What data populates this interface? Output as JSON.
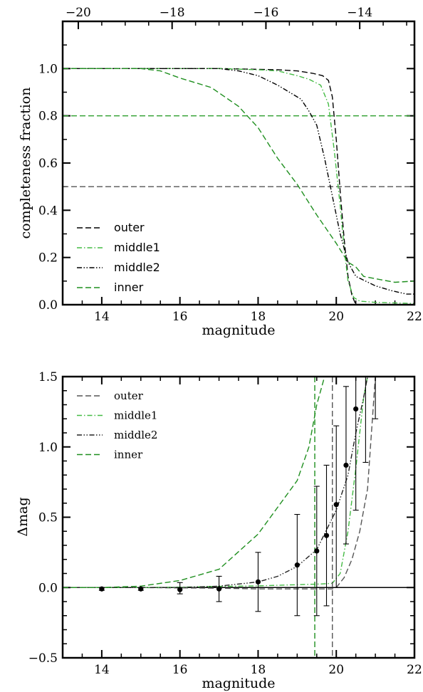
{
  "chart_data": [
    {
      "type": "line",
      "xlabel": "magnitude",
      "ylabel": "completeness fraction",
      "xlim": [
        13,
        22
      ],
      "ylim": [
        0,
        1.2
      ],
      "x_ticks": [
        "14",
        "16",
        "18",
        "20",
        "22"
      ],
      "y_ticks": [
        "0.0",
        "0.2",
        "0.4",
        "0.6",
        "0.8",
        "1.0"
      ],
      "top_axis_ticks": [
        "−20",
        "−18",
        "−16",
        "−14"
      ],
      "top_axis_tick_magnitudes": [
        13.4,
        15.8,
        18.2,
        20.6
      ],
      "reference_lines": [
        {
          "y": 0.8,
          "color": "#2e9e2e"
        },
        {
          "y": 0.5,
          "color": "#555555"
        }
      ],
      "legend_position": "lower-left",
      "series": [
        {
          "name": "outer",
          "color": "#000000",
          "dash": "dashed",
          "x": [
            13.0,
            15,
            17,
            18.5,
            19.0,
            19.4,
            19.65,
            19.8,
            19.9,
            20.0,
            20.1,
            20.2,
            20.3,
            20.4,
            20.5,
            22.0
          ],
          "y": [
            1.0,
            1.0,
            1.0,
            0.995,
            0.99,
            0.98,
            0.97,
            0.95,
            0.88,
            0.7,
            0.48,
            0.28,
            0.12,
            0.04,
            0.0,
            0.0
          ]
        },
        {
          "name": "middle1",
          "color": "#44bb44",
          "dash": "dashdot",
          "x": [
            13.0,
            15,
            17,
            18.0,
            18.5,
            19.0,
            19.3,
            19.6,
            19.8,
            19.95,
            20.1,
            20.2,
            20.3,
            20.45,
            20.6,
            21.0,
            22.0
          ],
          "y": [
            1.0,
            1.0,
            1.0,
            0.995,
            0.99,
            0.97,
            0.955,
            0.93,
            0.85,
            0.65,
            0.42,
            0.24,
            0.1,
            0.03,
            0.015,
            0.01,
            0.005
          ]
        },
        {
          "name": "middle2",
          "color": "#000000",
          "dash": "dashdotdot",
          "x": [
            13.0,
            16,
            17,
            17.5,
            18.0,
            18.5,
            18.8,
            19.1,
            19.3,
            19.5,
            19.7,
            19.9,
            20.1,
            20.3,
            20.5,
            21.0,
            21.4,
            21.8,
            22.0
          ],
          "y": [
            1.0,
            1.0,
            1.0,
            0.99,
            0.97,
            0.93,
            0.9,
            0.87,
            0.82,
            0.76,
            0.62,
            0.46,
            0.3,
            0.18,
            0.12,
            0.08,
            0.06,
            0.045,
            0.045
          ]
        },
        {
          "name": "inner",
          "color": "#1f8f1f",
          "dash": "dashed",
          "x": [
            13.0,
            15.0,
            15.5,
            16.0,
            16.8,
            17.5,
            18.0,
            18.5,
            19.0,
            19.5,
            20.0,
            20.3,
            20.5,
            20.7,
            21.0,
            21.5,
            22.0
          ],
          "y": [
            1.0,
            1.0,
            0.99,
            0.96,
            0.92,
            0.84,
            0.75,
            0.62,
            0.51,
            0.38,
            0.26,
            0.18,
            0.16,
            0.12,
            0.11,
            0.095,
            0.1
          ]
        }
      ]
    },
    {
      "type": "line",
      "xlabel": "magnitude",
      "ylabel": "Δmag",
      "xlim": [
        13,
        22
      ],
      "ylim": [
        -0.5,
        1.5
      ],
      "x_ticks": [
        "14",
        "16",
        "18",
        "20",
        "22"
      ],
      "y_ticks": [
        "−0.5",
        "0.0",
        "0.5",
        "1.0",
        "1.5"
      ],
      "legend_position": "top-left",
      "series": [
        {
          "name": "outer",
          "color": "#555555",
          "dash": "dashed",
          "x": [
            13.0,
            15,
            17,
            18,
            19,
            19.5,
            19.9,
            20.0,
            20.2,
            20.4,
            20.6,
            20.8,
            20.9,
            21.0
          ],
          "y": [
            0.0,
            0.0,
            -0.005,
            -0.01,
            -0.01,
            -0.01,
            -0.01,
            0.0,
            0.07,
            0.2,
            0.4,
            0.7,
            1.1,
            1.5
          ]
        },
        {
          "name": "middle1",
          "color": "#44bb44",
          "dash": "dashdot",
          "x": [
            13.0,
            15,
            16,
            17,
            18,
            19,
            19.6,
            19.9,
            20.1,
            20.3,
            20.5,
            20.6,
            20.7,
            20.8
          ],
          "y": [
            0.0,
            0.0,
            0.003,
            0.008,
            0.012,
            0.02,
            0.025,
            0.03,
            0.1,
            0.4,
            0.85,
            1.1,
            1.35,
            1.5
          ]
        },
        {
          "name": "middle2",
          "color": "#222222",
          "dash": "dashdotdot",
          "x": [
            13.0,
            15,
            16,
            17,
            18,
            18.5,
            19,
            19.5,
            20.0,
            20.3,
            20.5,
            20.7,
            20.8
          ],
          "y": [
            0.0,
            0.0,
            0.0,
            0.01,
            0.04,
            0.08,
            0.15,
            0.27,
            0.55,
            0.8,
            1.1,
            1.35,
            1.5
          ]
        },
        {
          "name": "inner",
          "color": "#1f8f1f",
          "dash": "dashed",
          "x": [
            13.0,
            14,
            15,
            16,
            17,
            18,
            19,
            19.3,
            19.5,
            19.7
          ],
          "y": [
            0.0,
            0.0,
            0.01,
            0.05,
            0.13,
            0.38,
            0.76,
            1.0,
            1.3,
            1.5
          ]
        }
      ],
      "vertical_lines": [
        {
          "x": 19.45,
          "color": "#1f8f1f",
          "dash": "dashed"
        },
        {
          "x": 19.9,
          "color": "#555555",
          "dash": "dashed"
        }
      ],
      "error_points": {
        "x": [
          14,
          15,
          16,
          17,
          18,
          19,
          19.5,
          19.75,
          20.0,
          20.25,
          20.5,
          20.75,
          21.0
        ],
        "y": [
          -0.01,
          -0.01,
          -0.015,
          -0.01,
          0.04,
          0.16,
          0.26,
          0.37,
          0.59,
          0.87,
          1.27,
          null,
          null
        ],
        "err_low": [
          0.01,
          0.01,
          0.03,
          0.09,
          0.21,
          0.36,
          0.46,
          0.5,
          0.59,
          0.56,
          null,
          null,
          null
        ],
        "err_high": [
          0.01,
          0.01,
          0.05,
          0.09,
          0.21,
          0.36,
          0.46,
          0.5,
          0.56,
          0.56,
          null,
          null,
          null
        ],
        "error_bars_only": [
          {
            "x": 20.75,
            "y_low": 0.89,
            "y_high": 1.5
          },
          {
            "x": 21.0,
            "y_low": 1.2,
            "y_high": 1.5
          },
          {
            "x": 20.5,
            "y_low": 0.55,
            "y_high": 1.5
          }
        ]
      }
    }
  ]
}
